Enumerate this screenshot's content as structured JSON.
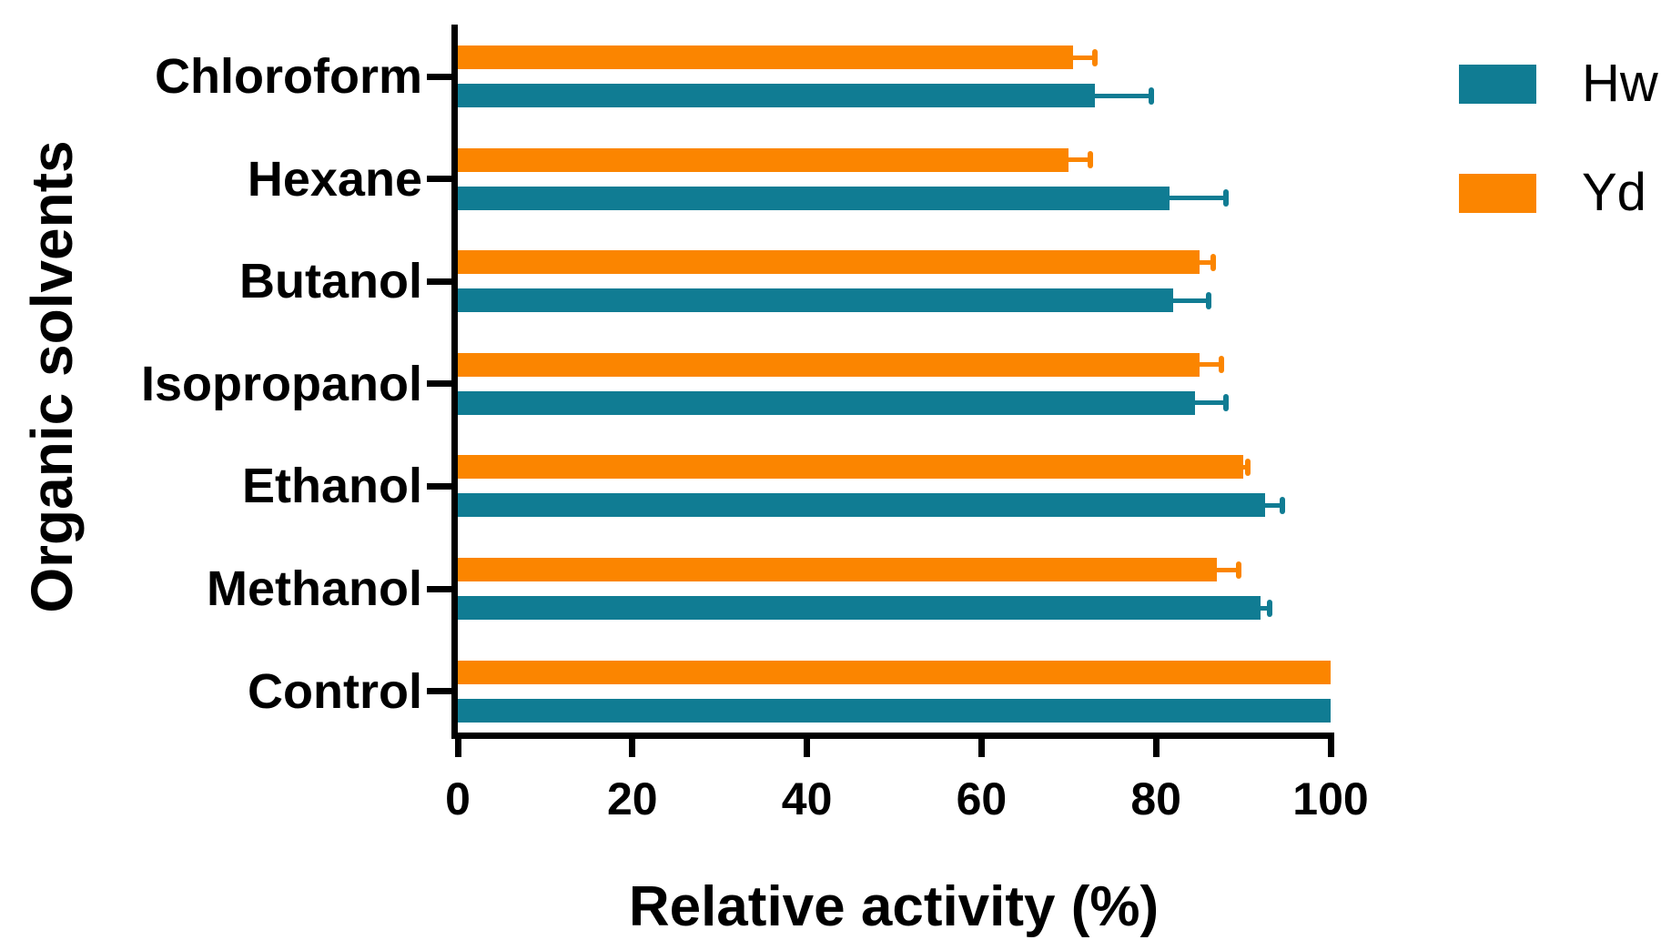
{
  "figure": {
    "background_color": "#ffffff",
    "axis_color": "#000000",
    "text_color": "#000000"
  },
  "chart_data": {
    "type": "bar",
    "orientation": "horizontal",
    "title": "",
    "xlabel": "Relative activity (%)",
    "ylabel": "Organic solvents",
    "xlim": [
      0,
      100
    ],
    "xticks": [
      0,
      20,
      40,
      60,
      80,
      100
    ],
    "grid": false,
    "categories_top_to_bottom": [
      "Chloroform",
      "Hexane",
      "Butanol",
      "Isopropanol",
      "Ethanol",
      "Methanol",
      "Control"
    ],
    "group_order_top_to_bottom": [
      "Yd",
      "Hw"
    ],
    "series": [
      {
        "name": "Hw",
        "color": "#107C93",
        "values": [
          73,
          81.5,
          82,
          84.5,
          92.5,
          92,
          100
        ],
        "errors_plus": [
          6.5,
          6.5,
          4,
          3.5,
          2,
          1,
          0
        ]
      },
      {
        "name": "Yd",
        "color": "#FB8500",
        "values": [
          70.5,
          70,
          85,
          85,
          90,
          87,
          100
        ],
        "errors_plus": [
          2.5,
          2.5,
          1.5,
          2.5,
          0.5,
          2.5,
          0
        ]
      }
    ],
    "legend": {
      "position": "top-right",
      "entries": [
        "Hw",
        "Yd"
      ]
    }
  }
}
